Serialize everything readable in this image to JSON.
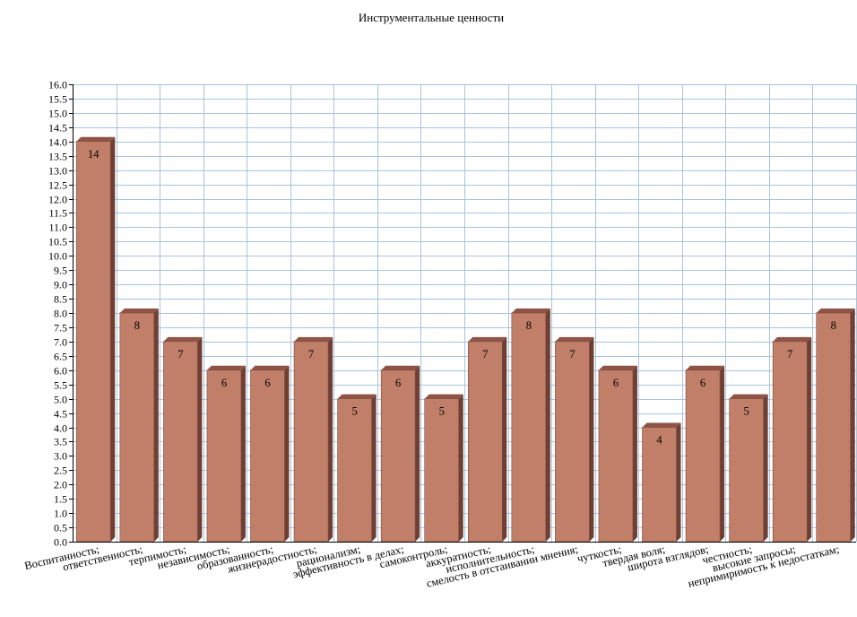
{
  "chart_data": {
    "type": "bar",
    "title": "Инструментальные ценности",
    "xlabel": "",
    "ylabel": "",
    "ylim": [
      0,
      16
    ],
    "ytick_step": 0.5,
    "grid": true,
    "legend": "none",
    "categories": [
      "Воспитанность;",
      "ответственность;",
      "терпимость;",
      "независимость;",
      "образованность;",
      "жизнерадостность;",
      "рационализм;",
      "эффективность в делах;",
      "самоконтроль;",
      "аккуратность;",
      "исполнительность;",
      "смелость в отстаивании мнения;",
      "чуткость;",
      "твердая воля;",
      "широта взглядов;",
      "честность;",
      "высокие запросы;",
      "непримиримость к недостаткам;"
    ],
    "values": [
      14,
      8,
      7,
      6,
      6,
      7,
      5,
      6,
      5,
      7,
      8,
      7,
      6,
      4,
      6,
      5,
      7,
      8
    ],
    "colors": {
      "bar_front": "#c17f69",
      "bar_top": "#8f5446",
      "bar_side": "#6f3f34",
      "grid": "#a9c3dd",
      "axis": "#000000"
    }
  }
}
